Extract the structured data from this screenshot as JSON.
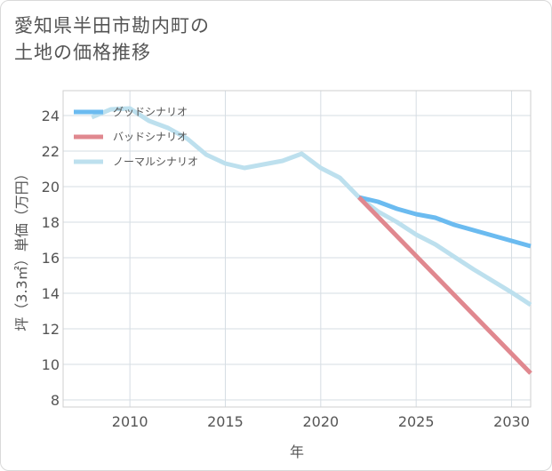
{
  "title_lines": [
    "愛知県半田市勘内町の",
    "土地の価格推移"
  ],
  "chart_data": {
    "type": "line",
    "xlabel": "年",
    "ylabel": "坪（3.3㎡）単価（万円）",
    "xlim": [
      2006.5,
      2031
    ],
    "ylim": [
      7.6,
      25.4
    ],
    "xticks": [
      2010,
      2015,
      2020,
      2025,
      2030
    ],
    "yticks": [
      8,
      10,
      12,
      14,
      16,
      18,
      20,
      22,
      24
    ],
    "grid": true,
    "legend_position": "top-left",
    "series": [
      {
        "name": "グッドシナリオ",
        "color": "#6bbbf0",
        "x": [
          2022,
          2023,
          2024,
          2025,
          2026,
          2027,
          2028,
          2029,
          2030,
          2031
        ],
        "y": [
          19.4,
          19.15,
          18.75,
          18.45,
          18.25,
          17.85,
          17.55,
          17.25,
          16.95,
          16.65
        ]
      },
      {
        "name": "バッドシナリオ",
        "color": "#e0888f",
        "x": [
          2022,
          2031
        ],
        "y": [
          19.4,
          9.5
        ]
      },
      {
        "name": "ノーマルシナリオ",
        "color": "#bde0ee",
        "x": [
          2008,
          2009,
          2010,
          2011,
          2012,
          2013,
          2014,
          2015,
          2016,
          2017,
          2018,
          2019,
          2020,
          2021,
          2022,
          2023,
          2024,
          2025,
          2026,
          2027,
          2028,
          2029,
          2030,
          2031
        ],
        "y": [
          23.9,
          24.35,
          24.4,
          23.7,
          23.3,
          22.7,
          21.8,
          21.3,
          21.05,
          21.25,
          21.45,
          21.85,
          21.05,
          20.5,
          19.4,
          18.6,
          18.0,
          17.3,
          16.75,
          16.05,
          15.35,
          14.7,
          14.05,
          13.35
        ]
      }
    ]
  }
}
